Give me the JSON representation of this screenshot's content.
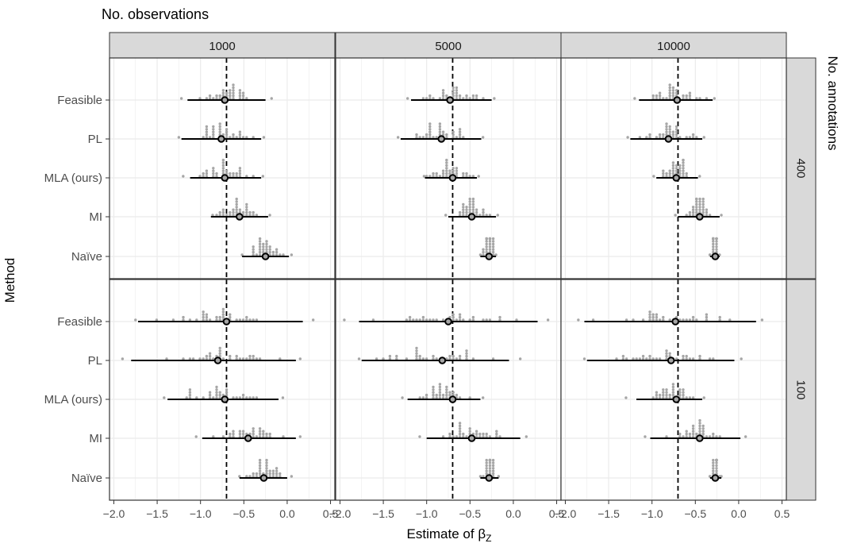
{
  "chart_data": {
    "type": "scatter",
    "top_title": "No. observations",
    "right_title": "No. annotations",
    "xlabel": "Estimate of",
    "xlabel_symbol": "β",
    "xlabel_subscript": "Z",
    "ylabel": "Method",
    "xlim": [
      -2.05,
      0.55
    ],
    "x_ticks": [
      -2.0,
      -1.5,
      -1.0,
      -0.5,
      0.0,
      0.5
    ],
    "x_tick_labels": [
      "−2.0",
      "−1.5",
      "−1.0",
      "−0.5",
      "0.0",
      "0.5"
    ],
    "reference_line": -0.7,
    "colors": {
      "panel_strip": "#d9d9d9",
      "grid": "#ebebeb",
      "dots": "#a6a6a6",
      "estimate": "#000000",
      "border": "#333333"
    },
    "columns": [
      "1000",
      "5000",
      "10000"
    ],
    "rows": [
      "400",
      "100"
    ],
    "methods": [
      "Feasible",
      "PL",
      "MLA (ours)",
      "MI",
      "Naïve"
    ],
    "panels": [
      {
        "col": "1000",
        "row": "400",
        "estimates": [
          {
            "method": "Feasible",
            "mean": -0.72,
            "lo": -1.15,
            "hi": -0.25,
            "min": -1.22,
            "max": -0.18
          },
          {
            "method": "PL",
            "mean": -0.76,
            "lo": -1.22,
            "hi": -0.3,
            "min": -1.25,
            "max": -0.27
          },
          {
            "method": "MLA (ours)",
            "mean": -0.72,
            "lo": -1.12,
            "hi": -0.3,
            "min": -1.2,
            "max": -0.28
          },
          {
            "method": "MI",
            "mean": -0.55,
            "lo": -0.88,
            "hi": -0.22,
            "min": -0.86,
            "max": -0.2
          },
          {
            "method": "Naïve",
            "mean": -0.25,
            "lo": -0.52,
            "hi": 0.02,
            "min": -0.52,
            "max": 0.05
          }
        ]
      },
      {
        "col": "5000",
        "row": "400",
        "estimates": [
          {
            "method": "Feasible",
            "mean": -0.73,
            "lo": -1.18,
            "hi": -0.25,
            "min": -1.22,
            "max": -0.22
          },
          {
            "method": "PL",
            "mean": -0.83,
            "lo": -1.3,
            "hi": -0.37,
            "min": -1.33,
            "max": -0.35
          },
          {
            "method": "MLA (ours)",
            "mean": -0.7,
            "lo": -1.02,
            "hi": -0.42,
            "min": -1.03,
            "max": -0.4
          },
          {
            "method": "MI",
            "mean": -0.48,
            "lo": -0.75,
            "hi": -0.2,
            "min": -0.78,
            "max": -0.18
          },
          {
            "method": "Naïve",
            "mean": -0.28,
            "lo": -0.38,
            "hi": -0.2,
            "min": -0.38,
            "max": -0.2
          }
        ]
      },
      {
        "col": "10000",
        "row": "400",
        "estimates": [
          {
            "method": "Feasible",
            "mean": -0.71,
            "lo": -1.15,
            "hi": -0.3,
            "min": -1.2,
            "max": -0.28
          },
          {
            "method": "PL",
            "mean": -0.81,
            "lo": -1.25,
            "hi": -0.42,
            "min": -1.28,
            "max": -0.4
          },
          {
            "method": "MLA (ours)",
            "mean": -0.72,
            "lo": -0.95,
            "hi": -0.47,
            "min": -0.98,
            "max": -0.45
          },
          {
            "method": "MI",
            "mean": -0.45,
            "lo": -0.7,
            "hi": -0.22,
            "min": -0.73,
            "max": -0.2
          },
          {
            "method": "Naïve",
            "mean": -0.27,
            "lo": -0.33,
            "hi": -0.22,
            "min": -0.33,
            "max": -0.22
          }
        ]
      },
      {
        "col": "1000",
        "row": "100",
        "estimates": [
          {
            "method": "Feasible",
            "mean": -0.7,
            "lo": -1.72,
            "hi": 0.18,
            "min": -1.75,
            "max": 0.3
          },
          {
            "method": "PL",
            "mean": -0.8,
            "lo": -1.8,
            "hi": 0.1,
            "min": -1.9,
            "max": 0.15
          },
          {
            "method": "MLA (ours)",
            "mean": -0.72,
            "lo": -1.38,
            "hi": -0.1,
            "min": -1.42,
            "max": -0.05
          },
          {
            "method": "MI",
            "mean": -0.45,
            "lo": -0.98,
            "hi": 0.1,
            "min": -1.05,
            "max": 0.15
          },
          {
            "method": "Naïve",
            "mean": -0.27,
            "lo": -0.55,
            "hi": 0.0,
            "min": -0.55,
            "max": 0.05
          }
        ]
      },
      {
        "col": "5000",
        "row": "100",
        "estimates": [
          {
            "method": "Feasible",
            "mean": -0.75,
            "lo": -1.78,
            "hi": 0.28,
            "min": -1.95,
            "max": 0.4
          },
          {
            "method": "PL",
            "mean": -0.82,
            "lo": -1.75,
            "hi": -0.05,
            "min": -1.78,
            "max": 0.08
          },
          {
            "method": "MLA (ours)",
            "mean": -0.7,
            "lo": -1.22,
            "hi": -0.38,
            "min": -1.28,
            "max": -0.35
          },
          {
            "method": "MI",
            "mean": -0.48,
            "lo": -1.0,
            "hi": 0.08,
            "min": -1.08,
            "max": 0.15
          },
          {
            "method": "Naïve",
            "mean": -0.28,
            "lo": -0.38,
            "hi": -0.17,
            "min": -0.38,
            "max": -0.17
          }
        ]
      },
      {
        "col": "10000",
        "row": "100",
        "estimates": [
          {
            "method": "Feasible",
            "mean": -0.73,
            "lo": -1.78,
            "hi": 0.2,
            "min": -1.85,
            "max": 0.27
          },
          {
            "method": "PL",
            "mean": -0.78,
            "lo": -1.75,
            "hi": -0.05,
            "min": -1.78,
            "max": 0.03
          },
          {
            "method": "MLA (ours)",
            "mean": -0.72,
            "lo": -1.18,
            "hi": -0.42,
            "min": -1.3,
            "max": -0.4
          },
          {
            "method": "MI",
            "mean": -0.45,
            "lo": -1.02,
            "hi": 0.02,
            "min": -1.08,
            "max": 0.08
          },
          {
            "method": "Naïve",
            "mean": -0.27,
            "lo": -0.33,
            "hi": -0.2,
            "min": -0.33,
            "max": -0.2
          }
        ]
      }
    ]
  }
}
